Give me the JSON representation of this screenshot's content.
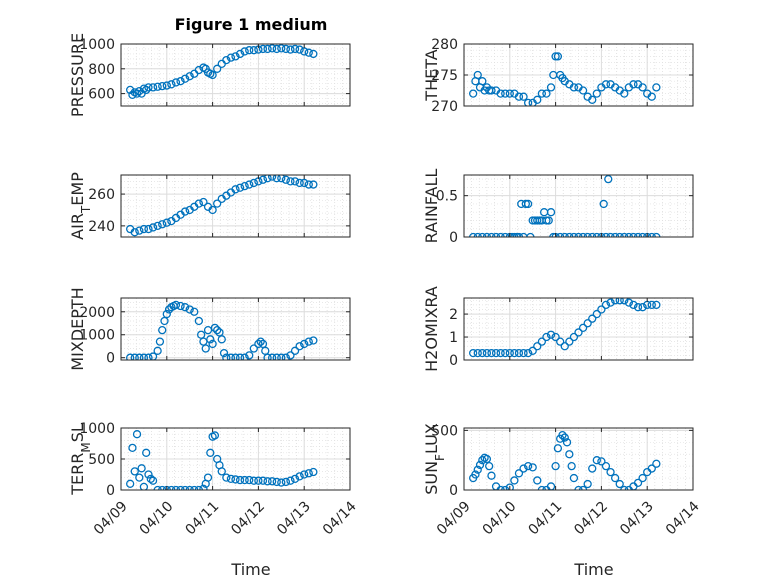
{
  "figure_title": "Figure 1 medium",
  "marker_color": "#0072BD",
  "x_tick_labels": [
    "04/09",
    "04/10",
    "04/11",
    "04/12",
    "04/13",
    "04/14"
  ],
  "x_axis_label": "Time",
  "chart_data": [
    {
      "type": "scatter",
      "ylabel": "PRESSURE",
      "xlim": [
        "04/09",
        "04/14"
      ],
      "ylim": [
        500,
        1000
      ],
      "yticks": [
        600,
        800,
        1000
      ],
      "grid": true,
      "x": [
        9.2,
        9.25,
        9.3,
        9.35,
        9.4,
        9.45,
        9.5,
        9.55,
        9.6,
        9.7,
        9.8,
        9.9,
        10.0,
        10.1,
        10.2,
        10.3,
        10.4,
        10.5,
        10.6,
        10.7,
        10.8,
        10.85,
        10.9,
        10.95,
        11.0,
        11.1,
        11.2,
        11.3,
        11.4,
        11.5,
        11.6,
        11.7,
        11.8,
        11.9,
        12.0,
        12.1,
        12.2,
        12.3,
        12.4,
        12.5,
        12.6,
        12.7,
        12.8,
        12.9,
        13.0,
        13.1,
        13.2
      ],
      "y": [
        630,
        590,
        610,
        600,
        620,
        600,
        640,
        630,
        650,
        650,
        655,
        660,
        665,
        675,
        690,
        700,
        720,
        740,
        760,
        790,
        810,
        800,
        770,
        760,
        750,
        800,
        840,
        870,
        890,
        900,
        920,
        940,
        950,
        950,
        955,
        960,
        960,
        965,
        960,
        965,
        960,
        955,
        960,
        955,
        940,
        930,
        920
      ]
    },
    {
      "type": "scatter",
      "ylabel": "THETA",
      "xlim": [
        "04/09",
        "04/14"
      ],
      "ylim": [
        270,
        280
      ],
      "yticks": [
        270,
        275,
        280
      ],
      "grid": true,
      "x": [
        9.2,
        9.25,
        9.3,
        9.35,
        9.4,
        9.45,
        9.5,
        9.55,
        9.6,
        9.7,
        9.8,
        9.9,
        10.0,
        10.1,
        10.2,
        10.3,
        10.4,
        10.5,
        10.6,
        10.7,
        10.8,
        10.9,
        10.95,
        11.0,
        11.05,
        11.1,
        11.15,
        11.2,
        11.3,
        11.4,
        11.5,
        11.6,
        11.7,
        11.8,
        11.9,
        12.0,
        12.1,
        12.2,
        12.3,
        12.4,
        12.5,
        12.6,
        12.7,
        12.8,
        12.9,
        13.0,
        13.1,
        13.2
      ],
      "y": [
        272,
        274,
        275,
        273,
        274,
        272.5,
        273,
        272.5,
        272.5,
        272.5,
        272,
        272,
        272,
        272,
        271.5,
        271.5,
        270.5,
        270.5,
        271,
        272,
        272,
        273,
        275,
        278,
        278,
        275,
        274.5,
        274,
        273.5,
        273,
        273,
        272.5,
        271.5,
        271,
        272,
        273,
        273.5,
        273.5,
        273,
        272.5,
        272,
        273,
        273.5,
        273.5,
        273,
        272,
        271.5,
        273
      ]
    },
    {
      "type": "scatter",
      "ylabel": "AIR_TEMP",
      "xlim": [
        "04/09",
        "04/14"
      ],
      "ylim": [
        233,
        272
      ],
      "yticks": [
        240,
        260
      ],
      "grid": true,
      "x": [
        9.2,
        9.3,
        9.4,
        9.5,
        9.6,
        9.7,
        9.8,
        9.9,
        10.0,
        10.1,
        10.2,
        10.3,
        10.4,
        10.5,
        10.6,
        10.7,
        10.8,
        10.9,
        11.0,
        11.1,
        11.2,
        11.3,
        11.4,
        11.5,
        11.6,
        11.7,
        11.8,
        11.9,
        12.0,
        12.1,
        12.2,
        12.3,
        12.4,
        12.5,
        12.6,
        12.7,
        12.8,
        12.9,
        13.0,
        13.1,
        13.2
      ],
      "y": [
        238,
        236,
        237,
        238,
        238,
        239,
        240,
        241,
        242,
        243,
        245,
        247,
        249,
        250,
        252,
        254,
        255,
        252,
        250,
        254,
        257,
        259,
        261,
        263,
        264,
        265,
        266,
        267,
        268,
        269,
        270,
        271,
        270,
        270,
        269,
        268,
        268,
        267,
        267,
        266,
        266
      ]
    },
    {
      "type": "scatter",
      "ylabel": "RAINFALL",
      "xlim": [
        "04/09",
        "04/14"
      ],
      "ylim": [
        0,
        0.75
      ],
      "yticks": [
        0,
        0.5
      ],
      "grid": true,
      "x": [
        9.2,
        9.3,
        9.4,
        9.5,
        9.6,
        9.7,
        9.8,
        9.9,
        10.0,
        10.05,
        10.1,
        10.15,
        10.2,
        10.25,
        10.3,
        10.35,
        10.4,
        10.45,
        10.5,
        10.55,
        10.6,
        10.65,
        10.7,
        10.75,
        10.8,
        10.85,
        10.9,
        10.95,
        11.0,
        11.1,
        11.2,
        11.3,
        11.4,
        11.5,
        11.6,
        11.7,
        11.8,
        11.9,
        12.0,
        12.05,
        12.1,
        12.15,
        12.2,
        12.3,
        12.4,
        12.5,
        12.6,
        12.7,
        12.8,
        12.9,
        13.0,
        13.1,
        13.2
      ],
      "y": [
        0,
        0,
        0,
        0,
        0,
        0,
        0,
        0,
        0,
        0,
        0,
        0,
        0,
        0.4,
        0,
        0.4,
        0.4,
        0,
        0.2,
        0.2,
        0.2,
        0.2,
        0.2,
        0.3,
        0.2,
        0.2,
        0.3,
        0,
        0,
        0,
        0,
        0,
        0,
        0,
        0,
        0,
        0,
        0,
        0,
        0.4,
        0,
        0.7,
        0,
        0,
        0,
        0,
        0,
        0,
        0,
        0,
        0,
        0,
        0
      ]
    },
    {
      "type": "scatter",
      "ylabel": "MIXDEPTH",
      "xlim": [
        "04/09",
        "04/14"
      ],
      "ylim": [
        -100,
        2600
      ],
      "yticks": [
        0,
        1000,
        2000
      ],
      "grid": true,
      "x": [
        9.2,
        9.3,
        9.4,
        9.5,
        9.6,
        9.7,
        9.8,
        9.85,
        9.9,
        9.95,
        10.0,
        10.05,
        10.1,
        10.15,
        10.2,
        10.3,
        10.4,
        10.5,
        10.6,
        10.7,
        10.75,
        10.8,
        10.85,
        10.9,
        10.95,
        11.0,
        11.05,
        11.1,
        11.15,
        11.2,
        11.25,
        11.3,
        11.4,
        11.5,
        11.6,
        11.7,
        11.8,
        11.9,
        12.0,
        12.05,
        12.1,
        12.15,
        12.2,
        12.3,
        12.4,
        12.5,
        12.6,
        12.7,
        12.8,
        12.9,
        13.0,
        13.1,
        13.2
      ],
      "y": [
        0,
        0,
        0,
        0,
        0,
        50,
        300,
        700,
        1200,
        1600,
        1900,
        2100,
        2200,
        2250,
        2300,
        2250,
        2200,
        2100,
        2000,
        1600,
        1000,
        700,
        400,
        1200,
        800,
        600,
        1300,
        1200,
        1100,
        800,
        200,
        0,
        0,
        0,
        0,
        0,
        100,
        400,
        600,
        700,
        600,
        300,
        0,
        0,
        0,
        0,
        0,
        100,
        300,
        500,
        600,
        700,
        750
      ]
    },
    {
      "type": "scatter",
      "ylabel": "H2OMIXRA",
      "xlim": [
        "04/09",
        "04/14"
      ],
      "ylim": [
        0,
        2.7
      ],
      "yticks": [
        0,
        1,
        2
      ],
      "grid": true,
      "x": [
        9.2,
        9.3,
        9.4,
        9.5,
        9.6,
        9.7,
        9.8,
        9.9,
        10.0,
        10.1,
        10.2,
        10.3,
        10.4,
        10.5,
        10.6,
        10.7,
        10.8,
        10.9,
        11.0,
        11.1,
        11.2,
        11.3,
        11.4,
        11.5,
        11.6,
        11.7,
        11.8,
        11.9,
        12.0,
        12.1,
        12.2,
        12.3,
        12.4,
        12.5,
        12.6,
        12.7,
        12.8,
        12.9,
        13.0,
        13.1,
        13.2
      ],
      "y": [
        0.3,
        0.3,
        0.3,
        0.3,
        0.3,
        0.3,
        0.3,
        0.3,
        0.3,
        0.3,
        0.3,
        0.3,
        0.3,
        0.4,
        0.6,
        0.8,
        1.0,
        1.1,
        1.0,
        0.8,
        0.6,
        0.8,
        1.0,
        1.2,
        1.4,
        1.6,
        1.8,
        2.0,
        2.2,
        2.4,
        2.5,
        2.6,
        2.6,
        2.6,
        2.5,
        2.4,
        2.3,
        2.3,
        2.4,
        2.4,
        2.4
      ]
    },
    {
      "type": "scatter",
      "ylabel": "TERR_MSL",
      "xlim": [
        "04/09",
        "04/14"
      ],
      "ylim": [
        0,
        1000
      ],
      "yticks": [
        0,
        500,
        1000
      ],
      "grid": true,
      "x": [
        9.2,
        9.25,
        9.3,
        9.35,
        9.4,
        9.45,
        9.5,
        9.55,
        9.6,
        9.65,
        9.7,
        9.8,
        9.9,
        10.0,
        10.1,
        10.2,
        10.3,
        10.4,
        10.5,
        10.6,
        10.7,
        10.8,
        10.85,
        10.9,
        10.95,
        11.0,
        11.05,
        11.1,
        11.15,
        11.2,
        11.3,
        11.4,
        11.5,
        11.6,
        11.7,
        11.8,
        11.9,
        12.0,
        12.1,
        12.2,
        12.3,
        12.4,
        12.5,
        12.6,
        12.7,
        12.8,
        12.9,
        13.0,
        13.1,
        13.2
      ],
      "y": [
        100,
        680,
        300,
        900,
        200,
        350,
        50,
        600,
        250,
        180,
        150,
        0,
        0,
        0,
        0,
        0,
        0,
        0,
        0,
        0,
        0,
        20,
        100,
        200,
        600,
        860,
        880,
        500,
        400,
        300,
        200,
        180,
        170,
        160,
        160,
        160,
        150,
        150,
        150,
        140,
        140,
        130,
        120,
        130,
        150,
        180,
        220,
        250,
        270,
        290
      ]
    },
    {
      "type": "scatter",
      "ylabel": "SUN_FLUX",
      "xlim": [
        "04/09",
        "04/14"
      ],
      "ylim": [
        0,
        520
      ],
      "yticks": [
        0,
        500
      ],
      "grid": true,
      "x": [
        9.2,
        9.25,
        9.3,
        9.35,
        9.4,
        9.45,
        9.5,
        9.55,
        9.6,
        9.7,
        9.8,
        9.9,
        10.0,
        10.1,
        10.2,
        10.3,
        10.4,
        10.5,
        10.6,
        10.7,
        10.8,
        10.9,
        11.0,
        11.05,
        11.1,
        11.15,
        11.2,
        11.25,
        11.3,
        11.35,
        11.4,
        11.5,
        11.6,
        11.7,
        11.8,
        11.9,
        12.0,
        12.1,
        12.2,
        12.3,
        12.4,
        12.5,
        12.6,
        12.7,
        12.8,
        12.9,
        13.0,
        13.1,
        13.2
      ],
      "y": [
        100,
        130,
        170,
        210,
        250,
        270,
        260,
        200,
        120,
        30,
        0,
        0,
        20,
        80,
        140,
        180,
        200,
        190,
        80,
        0,
        0,
        30,
        200,
        350,
        430,
        460,
        440,
        400,
        300,
        200,
        100,
        0,
        0,
        50,
        180,
        250,
        240,
        200,
        150,
        100,
        50,
        0,
        0,
        30,
        60,
        100,
        150,
        180,
        220
      ]
    }
  ]
}
